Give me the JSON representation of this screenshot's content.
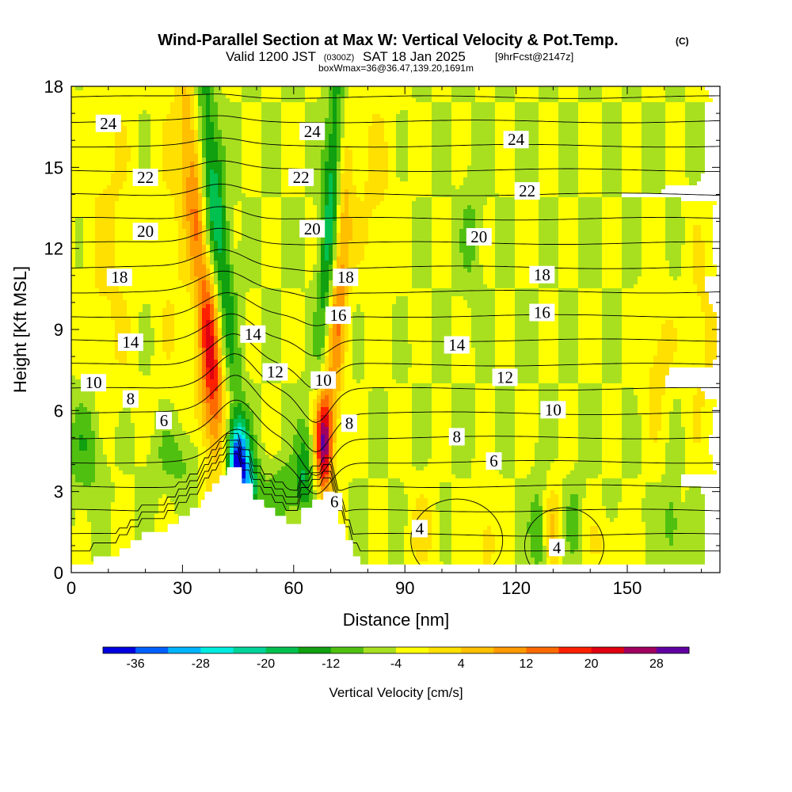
{
  "chart_data": {
    "type": "heatmap",
    "title": "Wind-Parallel Section at Max W: Vertical Velocity & Pot.Temp.",
    "title_mark": "(C)",
    "subtitle": {
      "prefix": "Valid 1200 JST",
      "utc": "(0300Z)",
      "date": "SAT 18 Jan 2025",
      "fcst": "[9hrFcst@2147z]"
    },
    "box_info": "boxWmax=36@36.47,139.20,1691m",
    "xlabel": "Distance [nm]",
    "ylabel": "Height [Kft MSL]",
    "xlim": [
      0,
      175
    ],
    "ylim": [
      0,
      18
    ],
    "x_ticks": [
      "0",
      "30",
      "60",
      "90",
      "120",
      "150"
    ],
    "y_ticks": [
      "0",
      "3",
      "6",
      "9",
      "12",
      "15",
      "18"
    ],
    "colorbar": {
      "label": "Vertical Velocity [cm/s]",
      "ticks": [
        "-36",
        "-28",
        "-20",
        "-12",
        "-4",
        "4",
        "12",
        "20",
        "28"
      ],
      "levels": [
        -36,
        -32,
        -28,
        -24,
        -20,
        -16,
        -12,
        -8,
        -4,
        0,
        4,
        8,
        12,
        16,
        20,
        24,
        28,
        32
      ],
      "colors": [
        "#0000e0",
        "#0060ff",
        "#00b4ff",
        "#00ece0",
        "#00d49a",
        "#00c050",
        "#10a010",
        "#50c010",
        "#a8e020",
        "#ffff00",
        "#ffe000",
        "#ffc000",
        "#ff9a00",
        "#ff6a00",
        "#ff2000",
        "#e00010",
        "#a00060",
        "#6000a0"
      ]
    },
    "theta_labels": [
      {
        "text": "24",
        "x": 10,
        "y": 16.6
      },
      {
        "text": "24",
        "x": 65,
        "y": 16.3
      },
      {
        "text": "24",
        "x": 120,
        "y": 16.0
      },
      {
        "text": "22",
        "x": 20,
        "y": 14.6
      },
      {
        "text": "22",
        "x": 62,
        "y": 14.6
      },
      {
        "text": "22",
        "x": 123,
        "y": 14.1
      },
      {
        "text": "20",
        "x": 20,
        "y": 12.6
      },
      {
        "text": "20",
        "x": 65,
        "y": 12.7
      },
      {
        "text": "20",
        "x": 110,
        "y": 12.4
      },
      {
        "text": "18",
        "x": 13,
        "y": 10.9
      },
      {
        "text": "18",
        "x": 74,
        "y": 10.9
      },
      {
        "text": "18",
        "x": 127,
        "y": 11.0
      },
      {
        "text": "16",
        "x": 72,
        "y": 9.5
      },
      {
        "text": "16",
        "x": 127,
        "y": 9.6
      },
      {
        "text": "14",
        "x": 16,
        "y": 8.5
      },
      {
        "text": "14",
        "x": 49,
        "y": 8.8
      },
      {
        "text": "14",
        "x": 104,
        "y": 8.4
      },
      {
        "text": "12",
        "x": 55,
        "y": 7.4
      },
      {
        "text": "12",
        "x": 117,
        "y": 7.2
      },
      {
        "text": "10",
        "x": 6,
        "y": 7.0
      },
      {
        "text": "10",
        "x": 68,
        "y": 7.1
      },
      {
        "text": "10",
        "x": 130,
        "y": 6.0
      },
      {
        "text": "8",
        "x": 16,
        "y": 6.4
      },
      {
        "text": "8",
        "x": 75,
        "y": 5.5
      },
      {
        "text": "8",
        "x": 104,
        "y": 5.0
      },
      {
        "text": "6",
        "x": 25,
        "y": 5.6
      },
      {
        "text": "6",
        "x": 114,
        "y": 4.1
      },
      {
        "text": "6",
        "x": 71,
        "y": 2.6
      },
      {
        "text": "4",
        "x": 94,
        "y": 1.6
      },
      {
        "text": "4",
        "x": 131,
        "y": 0.9
      }
    ],
    "terrain_kft": [
      [
        0,
        0.3
      ],
      [
        6,
        0.3
      ],
      [
        6,
        0.6
      ],
      [
        13,
        0.6
      ],
      [
        13,
        0.9
      ],
      [
        16,
        0.9
      ],
      [
        16,
        1.2
      ],
      [
        19,
        1.2
      ],
      [
        19,
        1.5
      ],
      [
        26,
        1.5
      ],
      [
        26,
        1.8
      ],
      [
        29,
        1.8
      ],
      [
        29,
        2.1
      ],
      [
        32,
        2.1
      ],
      [
        32,
        2.4
      ],
      [
        35,
        2.4
      ],
      [
        35,
        2.7
      ],
      [
        36,
        2.7
      ],
      [
        36,
        3.0
      ],
      [
        38,
        3.0
      ],
      [
        38,
        3.3
      ],
      [
        40,
        3.3
      ],
      [
        40,
        3.6
      ],
      [
        42,
        3.6
      ],
      [
        42,
        3.9
      ],
      [
        46,
        3.9
      ],
      [
        46,
        3.3
      ],
      [
        49,
        3.3
      ],
      [
        49,
        2.7
      ],
      [
        52,
        2.7
      ],
      [
        52,
        2.4
      ],
      [
        55,
        2.4
      ],
      [
        55,
        2.1
      ],
      [
        58,
        2.1
      ],
      [
        58,
        1.8
      ],
      [
        62,
        1.8
      ],
      [
        62,
        2.4
      ],
      [
        65,
        2.4
      ],
      [
        65,
        2.7
      ],
      [
        68,
        2.7
      ],
      [
        68,
        3.0
      ],
      [
        71,
        3.0
      ],
      [
        71,
        2.4
      ],
      [
        72,
        2.4
      ],
      [
        72,
        1.8
      ],
      [
        74,
        1.8
      ],
      [
        74,
        1.2
      ],
      [
        76,
        1.2
      ],
      [
        76,
        0.6
      ],
      [
        78,
        0.6
      ],
      [
        78,
        0.3
      ],
      [
        175,
        0.3
      ]
    ]
  }
}
